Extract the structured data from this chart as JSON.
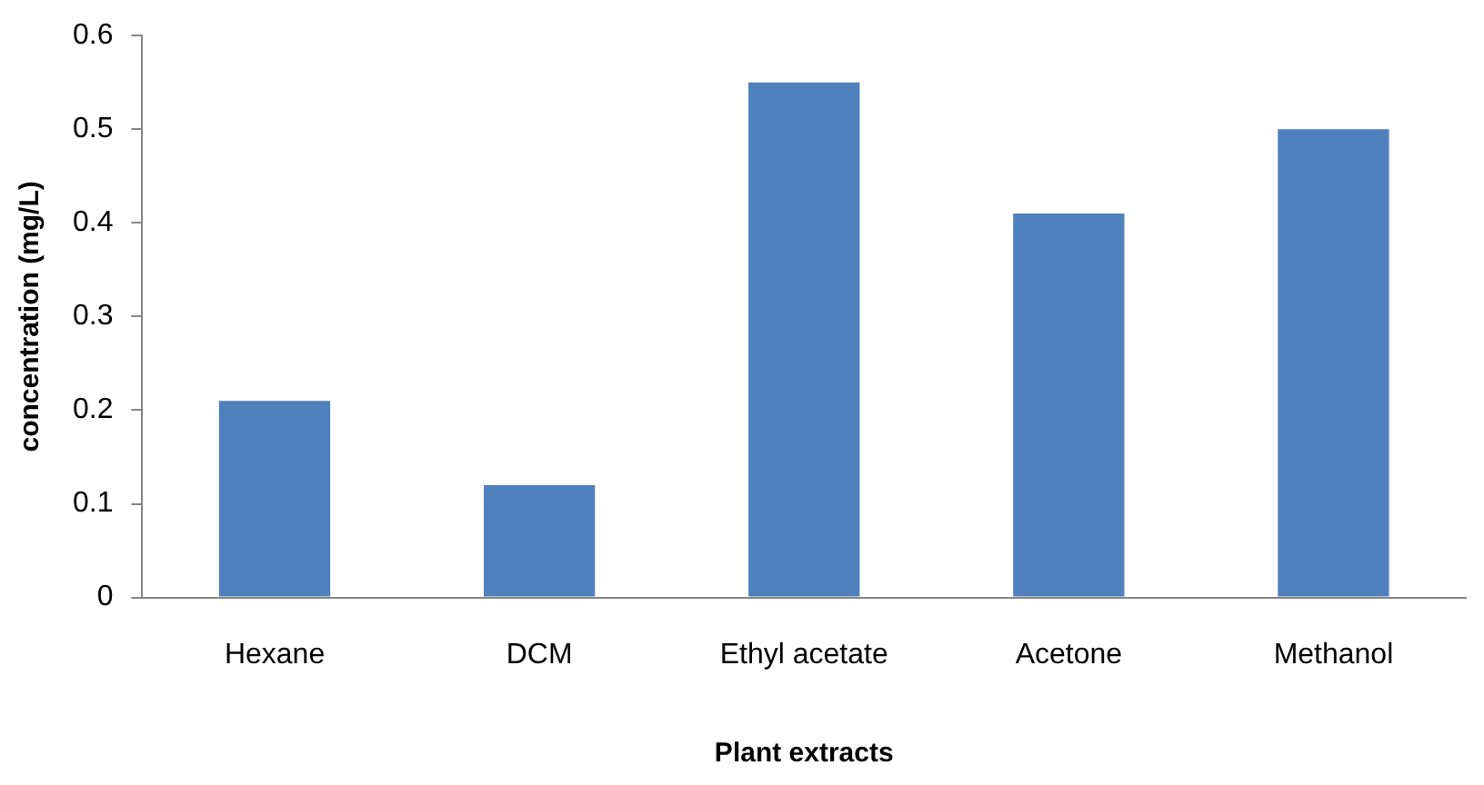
{
  "chart_data": {
    "type": "bar",
    "xlabel": "Plant extracts",
    "ylabel": "concentration (mg/L)",
    "categories": [
      "Hexane",
      "DCM",
      "Ethyl acetate",
      "Acetone",
      "Methanol"
    ],
    "values": [
      0.21,
      0.12,
      0.55,
      0.41,
      0.5
    ],
    "color": "#4f81bd",
    "ylim": [
      0,
      0.6
    ],
    "yticks": [
      0,
      0.1,
      0.2,
      0.3,
      0.4,
      0.5,
      0.6
    ],
    "grid": false,
    "legend": false
  }
}
